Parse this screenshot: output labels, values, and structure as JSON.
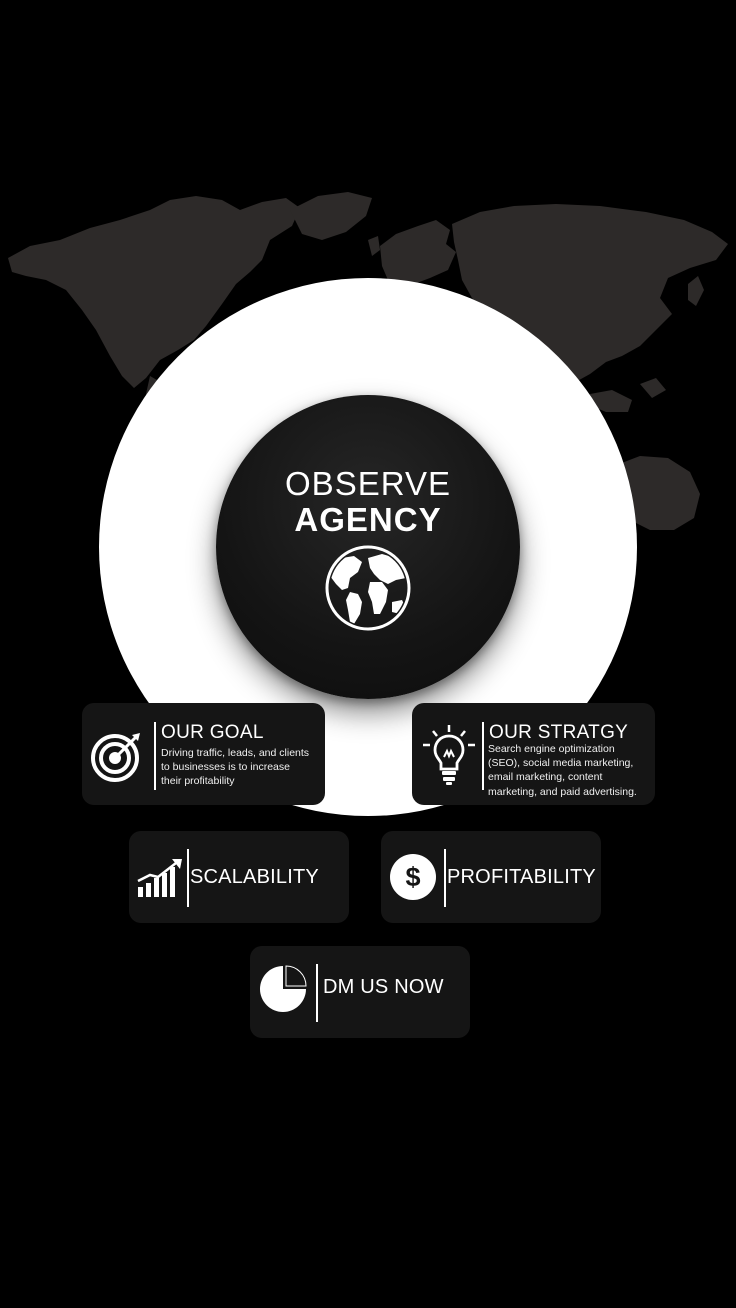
{
  "brand": {
    "line1": "OBSERVE",
    "line2": "AGENCY"
  },
  "goal": {
    "title": "OUR GOAL",
    "text": "Driving traffic, leads, and clients to businesses is to increase their profitability"
  },
  "strategy": {
    "title": "OUR STRATGY",
    "text": "Search engine optimization (SEO), social media marketing, email marketing, content marketing, and paid advertising."
  },
  "scalability": {
    "label": "SCALABILITY"
  },
  "profitability": {
    "label": "PROFITABILITY",
    "icon_symbol": "$"
  },
  "cta": {
    "label": "DM US NOW"
  },
  "colors": {
    "background": "#000000",
    "map": "#2d2a29",
    "ring": "#ffffff",
    "card": "#151515",
    "text": "#ffffff"
  },
  "icons": {
    "globe": "globe-icon",
    "goal": "target-icon",
    "strategy": "lightbulb-icon",
    "scalability": "growth-chart-icon",
    "profitability": "dollar-coin-icon",
    "cta": "pie-chart-icon"
  }
}
